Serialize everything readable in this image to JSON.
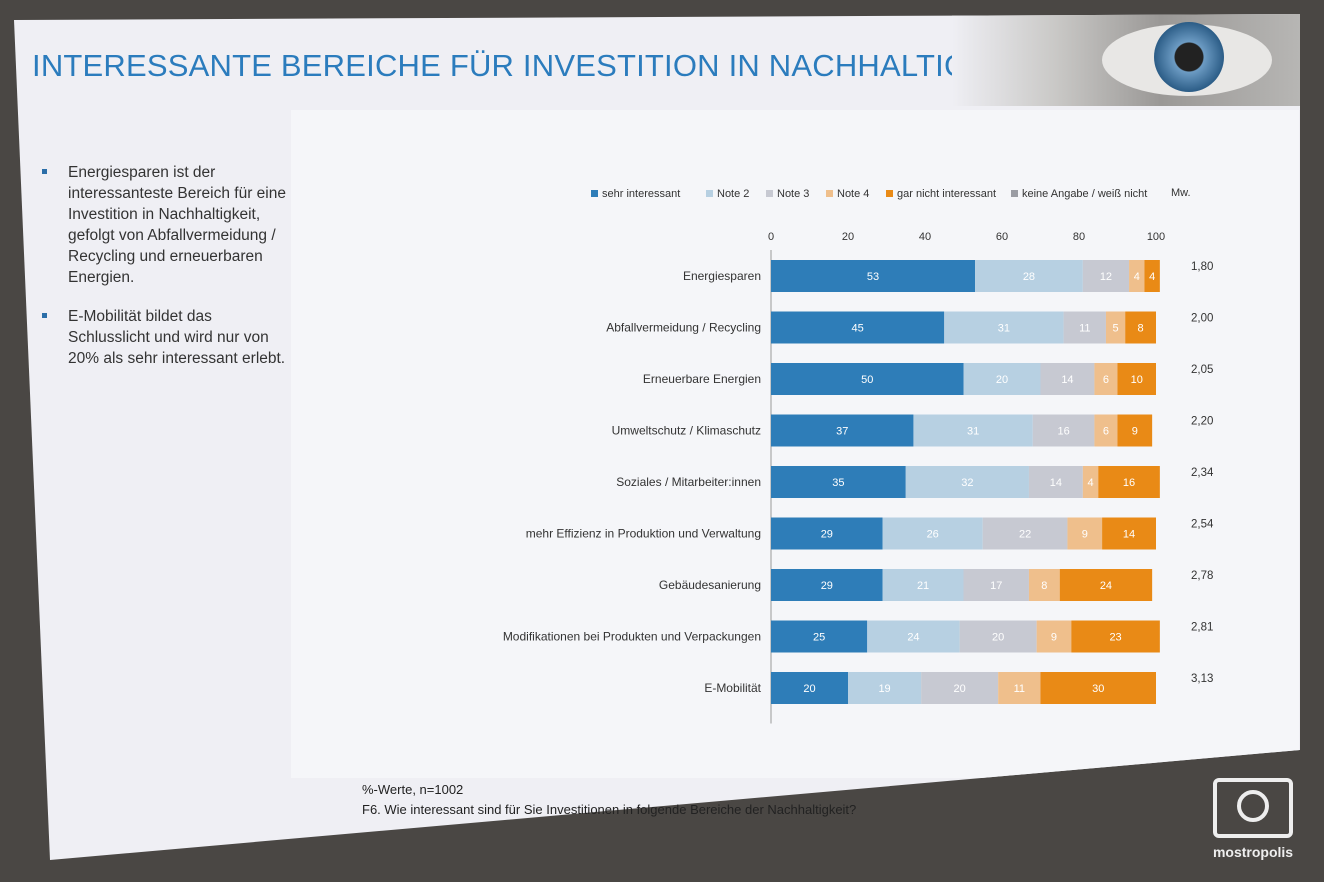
{
  "slide": {
    "title": "INTERESSANTE BEREICHE FÜR INVESTITION IN NACHHALTIGKEIT",
    "bullets": [
      "Energiesparen ist der interessanteste Bereich für eine Investition in Nachhaltigkeit, gefolgt von Abfallvermeidung / Recycling und erneuerbaren Energien.",
      "E-Mobilität bildet das Schlusslicht und wird nur von 20% als sehr interessant erlebt."
    ],
    "footer_line1": "%-Werte, n=1002",
    "footer_line2": "F6. Wie interessant sind für Sie Investitionen in folgende Bereiche der Nachhaltigkeit?",
    "watermark": "mostropolis"
  },
  "chart_data": {
    "type": "bar",
    "orientation": "horizontal",
    "stacked": true,
    "x_ticks": [
      "0",
      "20",
      "40",
      "60",
      "80",
      "100"
    ],
    "xlim": [
      0,
      100
    ],
    "mean_label": "Mw.",
    "categories": [
      "Energiesparen",
      "Abfallvermeidung / Recycling",
      "Erneuerbare Energien",
      "Umweltschutz / Klimaschutz",
      "Soziales / Mitarbeiter:innen",
      "mehr Effizienz in Produktion und Verwaltung",
      "Gebäudesanierung",
      "Modifikationen bei Produkten und Verpackungen",
      "E-Mobilität"
    ],
    "series": [
      {
        "name": "sehr interessant",
        "color": "#2e7db8",
        "values": [
          53,
          45,
          50,
          37,
          35,
          29,
          29,
          25,
          20
        ]
      },
      {
        "name": "Note 2",
        "color": "#b7d0e2",
        "values": [
          28,
          31,
          20,
          31,
          32,
          26,
          21,
          24,
          19
        ]
      },
      {
        "name": "Note 3",
        "color": "#c7c9d2",
        "values": [
          12,
          11,
          14,
          16,
          14,
          22,
          17,
          20,
          20
        ]
      },
      {
        "name": "Note 4",
        "color": "#efbf8c",
        "values": [
          4,
          5,
          6,
          6,
          4,
          9,
          8,
          9,
          11
        ]
      },
      {
        "name": "gar nicht interessant",
        "color": "#e98a16",
        "values": [
          4,
          8,
          10,
          9,
          16,
          14,
          24,
          23,
          30
        ]
      },
      {
        "name": "keine Angabe / weiß nicht",
        "color": "#9a9ca3",
        "values": [
          0,
          0,
          0,
          0,
          0,
          0,
          0,
          0,
          0
        ]
      }
    ],
    "means": [
      "1,80",
      "2,00",
      "2,05",
      "2,20",
      "2,34",
      "2,54",
      "2,78",
      "2,81",
      "3,13"
    ],
    "legend_position": "top"
  }
}
